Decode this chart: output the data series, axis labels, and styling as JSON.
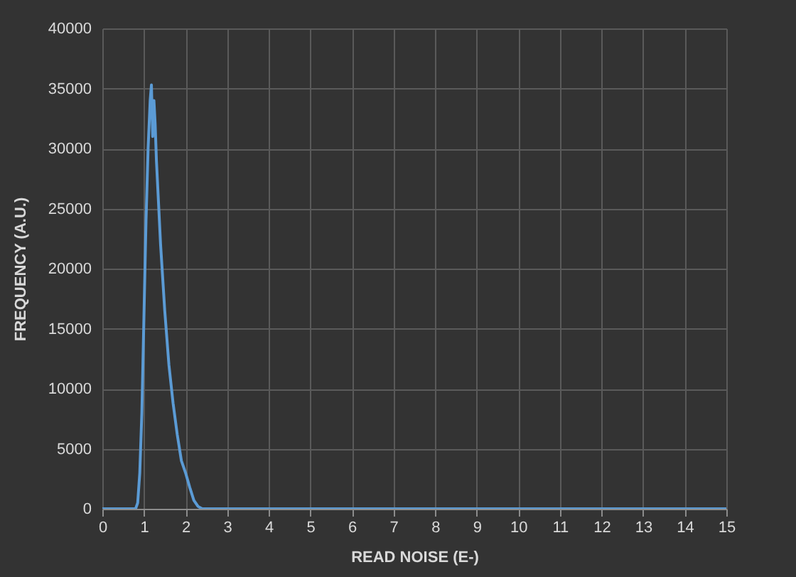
{
  "chart_data": {
    "type": "line",
    "xlabel": "READ NOISE (E-)",
    "ylabel": "FREQUENCY (A.U.)",
    "x": [
      0,
      0.8,
      0.85,
      0.9,
      0.95,
      1.0,
      1.05,
      1.1,
      1.15,
      1.18,
      1.21,
      1.24,
      1.27,
      1.3,
      1.4,
      1.5,
      1.6,
      1.7,
      1.8,
      1.9,
      2.0,
      2.1,
      2.2,
      2.3,
      2.4,
      15
    ],
    "series": [
      {
        "color": "#5b9bd5",
        "values": [
          0,
          0,
          500,
          3000,
          8000,
          16000,
          24000,
          30000,
          34000,
          35300,
          31000,
          34000,
          32000,
          29000,
          22000,
          16500,
          12000,
          8800,
          6200,
          4000,
          3000,
          1800,
          700,
          200,
          0,
          0
        ]
      }
    ],
    "xlim": [
      0,
      15
    ],
    "xticks": [
      0,
      1,
      2,
      3,
      4,
      5,
      6,
      7,
      8,
      9,
      10,
      11,
      12,
      13,
      14,
      15
    ],
    "ylim": [
      0,
      40000
    ],
    "yticks": [
      0,
      5000,
      10000,
      15000,
      20000,
      25000,
      30000,
      35000,
      40000
    ],
    "grid": true,
    "legend": false
  }
}
